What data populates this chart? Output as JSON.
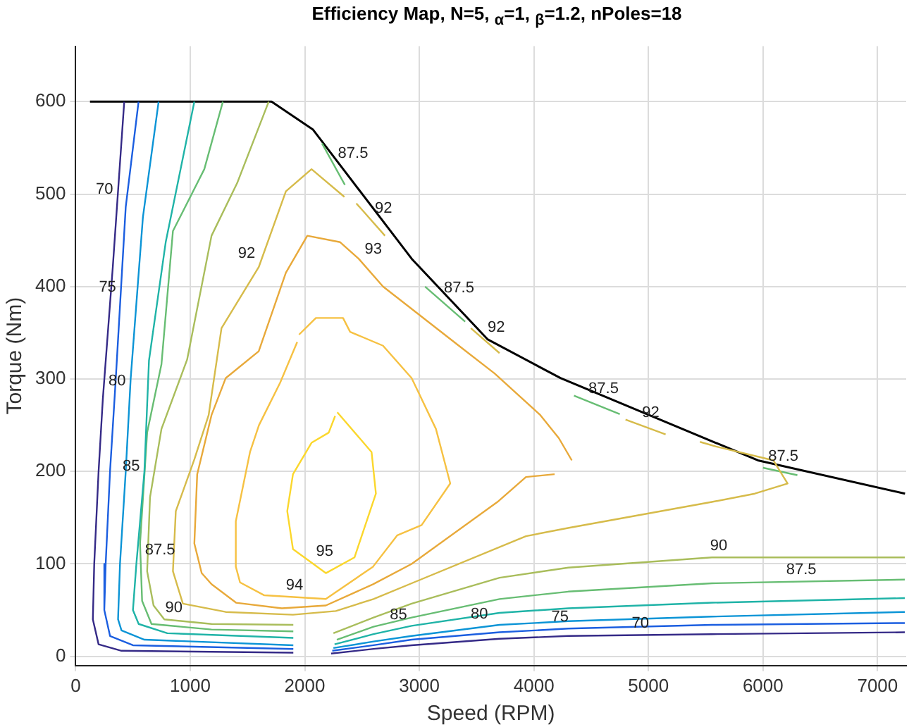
{
  "chart_data": {
    "type": "line",
    "title": "Efficiency Map, N=5, $_{α}$=1, $_{β}$=1.2, nPoles=18",
    "xlabel": "Speed (RPM)",
    "ylabel": "Torque (Nm)",
    "xlim": [
      0,
      7250
    ],
    "ylim": [
      -10,
      660
    ],
    "xticks": [
      0,
      1000,
      2000,
      3000,
      4000,
      5000,
      6000,
      7000
    ],
    "yticks": [
      0,
      100,
      200,
      300,
      400,
      500,
      600
    ],
    "grid": true,
    "legend": false,
    "marker": "none",
    "line_style": "solid",
    "series": [
      {
        "name": "70",
        "color": "#352a87",
        "x": [
          424,
          324,
          237,
          200,
          162,
          150,
          200,
          400,
          1900
        ],
        "values": [
          600,
          421,
          278,
          200,
          100,
          40,
          13,
          6,
          4
        ]
      },
      {
        "name": "75",
        "color": "#1b5ee0",
        "x": [
          549,
          437,
          350,
          300,
          262,
          250,
          300,
          500,
          1900
        ],
        "values": [
          600,
          486,
          300,
          200,
          100,
          50,
          22,
          12,
          8
        ]
      },
      {
        "name": "80",
        "color": "#0b94d6",
        "x": [
          724,
          587,
          480,
          437,
          387,
          370,
          400,
          600,
          1900
        ],
        "values": [
          600,
          475,
          300,
          200,
          100,
          40,
          28,
          18,
          12
        ]
      },
      {
        "name": "85",
        "color": "#1fb3a7",
        "x": [
          1036,
          786,
          640,
          600,
          530,
          500,
          550,
          800,
          1900
        ],
        "values": [
          600,
          448,
          320,
          200,
          100,
          50,
          35,
          25,
          20
        ]
      },
      {
        "name": "87.5",
        "color": "#67bd73",
        "x": [
          1285,
          1123,
          849,
          749,
          624,
          562,
          580,
          662,
          1186,
          1900
        ],
        "values": [
          600,
          527,
          460,
          316,
          242,
          122,
          60,
          35,
          29,
          27
        ]
      },
      {
        "name": "90",
        "color": "#a9bd5b",
        "x": [
          1685,
          1410,
          1186,
          973,
          749,
          649,
          624,
          680,
          774,
          1186,
          1900
        ],
        "values": [
          600,
          512,
          455,
          321,
          246,
          172,
          92,
          55,
          40,
          35,
          34
        ]
      },
      {
        "name": "92",
        "color": "#d6bb4a",
        "x": [
          2346,
          2059,
          1835,
          1598,
          1273,
          1161,
          1036,
          874,
          849,
          936,
          1310,
          1897,
          2271,
          2600,
          2933,
          3931,
          4306,
          5554,
          5929,
          6215,
          6090,
          5591,
          5450
        ],
        "values": [
          497,
          527,
          503,
          421,
          355,
          261,
          213,
          157,
          92,
          57,
          48,
          45,
          49,
          62,
          79,
          130,
          139,
          167,
          176,
          187,
          212,
          227,
          232
        ]
      },
      {
        "name": "93",
        "color": "#e8a93a",
        "x": [
          4331,
          4218,
          4056,
          3657,
          3345,
          2683,
          2471,
          2309,
          2022,
          1835,
          1598,
          1310,
          1186,
          1061,
          1036,
          1100,
          1186,
          1400,
          1800,
          2184,
          2596,
          2933,
          3682,
          3931,
          4181
        ],
        "values": [
          212,
          236,
          261,
          306,
          336,
          400,
          430,
          448,
          455,
          415,
          330,
          301,
          261,
          197,
          122,
          90,
          78,
          58,
          52,
          55,
          78,
          100,
          167,
          194,
          197
        ]
      },
      {
        "name": "94",
        "color": "#f6c142",
        "x": [
          1934,
          1785,
          1600,
          1522,
          1398,
          1398,
          1435,
          1647,
          2184,
          2596,
          2808,
          3020,
          3270,
          3145,
          2933,
          2683,
          2396,
          2334,
          2097,
          1950
        ],
        "values": [
          340,
          296,
          250,
          221,
          146,
          97,
          80,
          66,
          62,
          97,
          131,
          142,
          187,
          246,
          301,
          336,
          351,
          366,
          366,
          348
        ]
      },
      {
        "name": "95",
        "color": "#fbd72c",
        "x": [
          2284,
          2583,
          2621,
          2434,
          2184,
          1897,
          1847,
          1897,
          2059,
          2209,
          2265
        ],
        "values": [
          264,
          221,
          176,
          107,
          90,
          116,
          157,
          197,
          231,
          242,
          260
        ]
      },
      {
        "name": "90",
        "color": "#a9bd5b",
        "x": [
          2250,
          2600,
          2933,
          3700,
          4300,
          5554,
          7238
        ],
        "values": [
          25,
          42,
          57,
          85,
          96,
          107,
          107
        ]
      },
      {
        "name": "87.5",
        "color": "#67bd73",
        "x": [
          2280,
          2600,
          2933,
          3700,
          4300,
          5554,
          7238
        ],
        "values": [
          18,
          32,
          42,
          62,
          70,
          79,
          83
        ]
      },
      {
        "name": "85",
        "color": "#1fb3a7",
        "x": [
          2260,
          2600,
          2933,
          3700,
          4300,
          5554,
          7238
        ],
        "values": [
          13,
          24,
          33,
          47,
          52,
          58,
          63
        ]
      },
      {
        "name": "80",
        "color": "#0b94d6",
        "x": [
          2250,
          2600,
          2933,
          3700,
          4300,
          5554,
          7238
        ],
        "values": [
          9,
          16,
          22,
          34,
          38,
          43,
          48
        ]
      },
      {
        "name": "75",
        "color": "#1b5ee0",
        "x": [
          2240,
          2600,
          2933,
          3700,
          4300,
          5554,
          7238
        ],
        "values": [
          6,
          12,
          18,
          26,
          30,
          34,
          36
        ]
      },
      {
        "name": "70",
        "color": "#352a87",
        "x": [
          2230,
          2600,
          2933,
          3700,
          4300,
          5554,
          7238
        ],
        "values": [
          3,
          8,
          12,
          19,
          22,
          24,
          26
        ]
      },
      {
        "name": "87.5",
        "color": "#67bd73",
        "x": [
          2150,
          2350
        ],
        "values": [
          555,
          510
        ]
      },
      {
        "name": "87.5",
        "color": "#67bd73",
        "x": [
          3050,
          3400
        ],
        "values": [
          400,
          362
        ]
      },
      {
        "name": "87.5",
        "color": "#67bd73",
        "x": [
          4350,
          4750
        ],
        "values": [
          282,
          262
        ]
      },
      {
        "name": "87.5",
        "color": "#67bd73",
        "x": [
          6000,
          6300
        ],
        "values": [
          204,
          196
        ]
      },
      {
        "name": "92",
        "color": "#d6bb4a",
        "x": [
          2450,
          2700
        ],
        "values": [
          490,
          455
        ]
      },
      {
        "name": "92",
        "color": "#d6bb4a",
        "x": [
          3450,
          3700
        ],
        "values": [
          355,
          328
        ]
      },
      {
        "name": "92",
        "color": "#d6bb4a",
        "x": [
          4800,
          5150
        ],
        "values": [
          256,
          240
        ]
      },
      {
        "color": "#000000",
        "x": [
          125,
          1710,
          2070,
          2934,
          3595,
          4232,
          5955,
          7240
        ],
        "values": [
          600,
          600,
          570,
          430,
          343,
          301,
          212,
          176
        ]
      }
    ]
  }
}
